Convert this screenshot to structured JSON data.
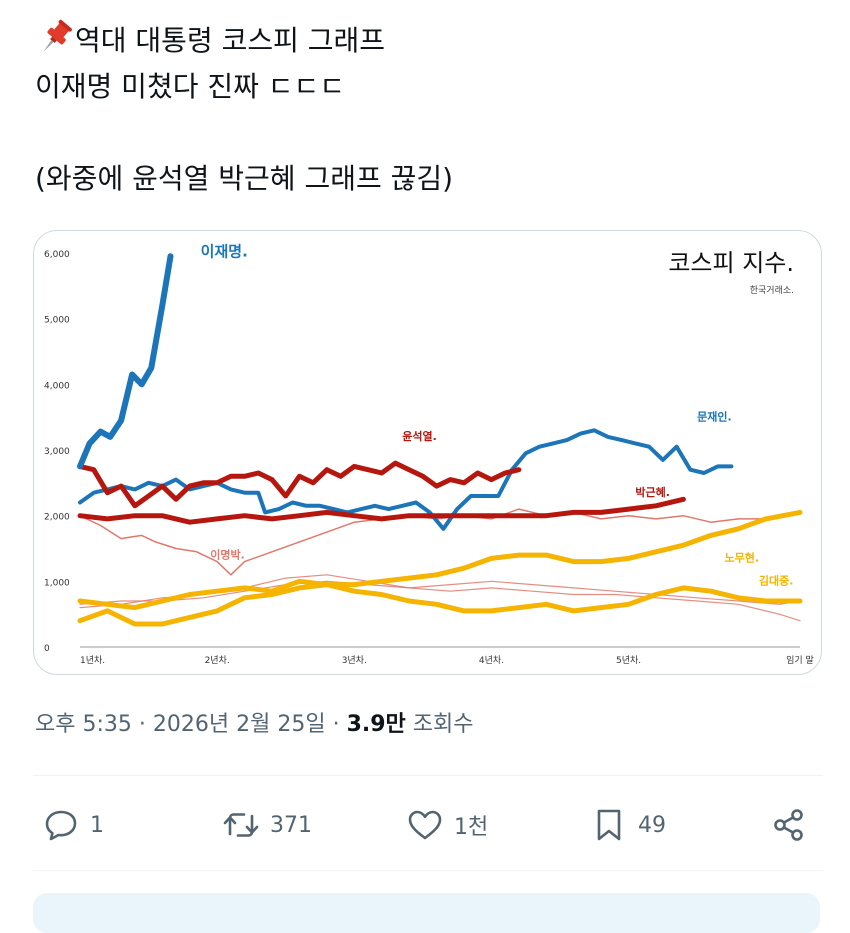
{
  "tweet": {
    "line1": "역대 대통령 코스피 그래프",
    "line2": "이재명 미쳤다 진짜 ㄷㄷㄷ",
    "line3": "(와중에 윤석열 박근혜 그래프 끊김)",
    "pin_icon": "pushpin-icon"
  },
  "meta": {
    "time": "오후 5:35",
    "sep1": "·",
    "date": "2026년 2월 25일",
    "sep2": "·",
    "views_count": "3.9만",
    "views_label": "조회수"
  },
  "actions": {
    "reply": {
      "icon": "reply-icon",
      "count": "1"
    },
    "retweet": {
      "icon": "retweet-icon",
      "count": "371"
    },
    "like": {
      "icon": "heart-icon",
      "count": "1천"
    },
    "bookmark": {
      "icon": "bookmark-icon",
      "count": "49"
    },
    "share": {
      "icon": "share-icon"
    }
  },
  "colors": {
    "blue": "#1b75b8",
    "red": "#b5170f",
    "lightred": "#e0796c",
    "yellow": "#f5b400",
    "text_secondary": "#536471"
  },
  "chart_data": {
    "type": "line",
    "title": "코스피 지수.",
    "source": "한국거래소.",
    "ylim": [
      0,
      6000
    ],
    "xlim": [
      0,
      5.25
    ],
    "yticks": [
      0,
      1000,
      2000,
      3000,
      4000,
      5000,
      6000
    ],
    "ytick_labels": [
      "0",
      "1,000",
      "2,000",
      "3,000",
      "4,000",
      "5,000",
      "6,000"
    ],
    "xticks": [
      0,
      1,
      2,
      3,
      4,
      5.25
    ],
    "xtick_labels": [
      "1년차.",
      "2년차.",
      "3년차.",
      "4년차.",
      "5년차.",
      "임기 말"
    ],
    "series": [
      {
        "name": "이재명.",
        "color": "#1b75b8",
        "width": 6,
        "label_x": 0.88,
        "label_y": 5950,
        "label_size": 15,
        "values": [
          [
            0,
            2750
          ],
          [
            0.07,
            3100
          ],
          [
            0.15,
            3280
          ],
          [
            0.22,
            3200
          ],
          [
            0.3,
            3450
          ],
          [
            0.38,
            4150
          ],
          [
            0.45,
            4000
          ],
          [
            0.52,
            4250
          ],
          [
            0.6,
            5200
          ],
          [
            0.66,
            5950
          ]
        ]
      },
      {
        "name": "윤석열.",
        "color": "#b5170f",
        "width": 5,
        "label_x": 2.35,
        "label_y": 3150,
        "label_size": 11,
        "values": [
          [
            0,
            2750
          ],
          [
            0.1,
            2700
          ],
          [
            0.2,
            2350
          ],
          [
            0.3,
            2450
          ],
          [
            0.4,
            2150
          ],
          [
            0.5,
            2300
          ],
          [
            0.6,
            2450
          ],
          [
            0.7,
            2250
          ],
          [
            0.8,
            2450
          ],
          [
            0.9,
            2500
          ],
          [
            1,
            2500
          ],
          [
            1.1,
            2600
          ],
          [
            1.2,
            2600
          ],
          [
            1.3,
            2650
          ],
          [
            1.4,
            2550
          ],
          [
            1.5,
            2300
          ],
          [
            1.6,
            2600
          ],
          [
            1.7,
            2500
          ],
          [
            1.8,
            2700
          ],
          [
            1.9,
            2600
          ],
          [
            2,
            2750
          ],
          [
            2.1,
            2700
          ],
          [
            2.2,
            2650
          ],
          [
            2.3,
            2800
          ],
          [
            2.4,
            2700
          ],
          [
            2.5,
            2600
          ],
          [
            2.6,
            2450
          ],
          [
            2.7,
            2550
          ],
          [
            2.8,
            2500
          ],
          [
            2.9,
            2650
          ],
          [
            3,
            2550
          ],
          [
            3.1,
            2650
          ],
          [
            3.2,
            2700
          ]
        ]
      },
      {
        "name": "문재인.",
        "color": "#1b75b8",
        "width": 4,
        "label_x": 4.5,
        "label_y": 3450,
        "label_size": 11,
        "values": [
          [
            0,
            2200
          ],
          [
            0.1,
            2350
          ],
          [
            0.2,
            2400
          ],
          [
            0.3,
            2450
          ],
          [
            0.4,
            2400
          ],
          [
            0.5,
            2500
          ],
          [
            0.6,
            2450
          ],
          [
            0.7,
            2550
          ],
          [
            0.8,
            2400
          ],
          [
            0.9,
            2450
          ],
          [
            1,
            2500
          ],
          [
            1.1,
            2400
          ],
          [
            1.2,
            2350
          ],
          [
            1.3,
            2350
          ],
          [
            1.35,
            2050
          ],
          [
            1.45,
            2100
          ],
          [
            1.55,
            2200
          ],
          [
            1.65,
            2150
          ],
          [
            1.75,
            2150
          ],
          [
            1.85,
            2100
          ],
          [
            1.95,
            2050
          ],
          [
            2.05,
            2100
          ],
          [
            2.15,
            2150
          ],
          [
            2.25,
            2100
          ],
          [
            2.35,
            2150
          ],
          [
            2.45,
            2200
          ],
          [
            2.55,
            2050
          ],
          [
            2.65,
            1800
          ],
          [
            2.75,
            2100
          ],
          [
            2.85,
            2300
          ],
          [
            2.95,
            2300
          ],
          [
            3.05,
            2300
          ],
          [
            3.15,
            2700
          ],
          [
            3.25,
            2950
          ],
          [
            3.35,
            3050
          ],
          [
            3.45,
            3100
          ],
          [
            3.55,
            3150
          ],
          [
            3.65,
            3250
          ],
          [
            3.75,
            3300
          ],
          [
            3.85,
            3200
          ],
          [
            3.95,
            3150
          ],
          [
            4.05,
            3100
          ],
          [
            4.15,
            3050
          ],
          [
            4.25,
            2850
          ],
          [
            4.35,
            3050
          ],
          [
            4.45,
            2700
          ],
          [
            4.55,
            2650
          ],
          [
            4.65,
            2750
          ],
          [
            4.75,
            2750
          ]
        ]
      },
      {
        "name": "박근혜.",
        "color": "#b5170f",
        "width": 5,
        "label_x": 4.05,
        "label_y": 2300,
        "label_size": 11,
        "values": [
          [
            0,
            2000
          ],
          [
            0.2,
            1950
          ],
          [
            0.4,
            2000
          ],
          [
            0.6,
            2000
          ],
          [
            0.8,
            1900
          ],
          [
            1,
            1950
          ],
          [
            1.2,
            2000
          ],
          [
            1.4,
            1950
          ],
          [
            1.6,
            2000
          ],
          [
            1.8,
            2050
          ],
          [
            2,
            2000
          ],
          [
            2.2,
            1950
          ],
          [
            2.4,
            2000
          ],
          [
            2.6,
            2000
          ],
          [
            2.8,
            2000
          ],
          [
            3,
            2000
          ],
          [
            3.2,
            2000
          ],
          [
            3.4,
            2000
          ],
          [
            3.6,
            2050
          ],
          [
            3.8,
            2050
          ],
          [
            4,
            2100
          ],
          [
            4.2,
            2150
          ],
          [
            4.4,
            2250
          ]
        ]
      },
      {
        "name": "노무현.",
        "color": "#f5b400",
        "width": 5,
        "label_x": 4.7,
        "label_y": 1300,
        "label_size": 11,
        "values": [
          [
            0,
            400
          ],
          [
            0.2,
            550
          ],
          [
            0.4,
            350
          ],
          [
            0.6,
            350
          ],
          [
            0.8,
            450
          ],
          [
            1,
            550
          ],
          [
            1.2,
            750
          ],
          [
            1.4,
            800
          ],
          [
            1.6,
            900
          ],
          [
            1.8,
            950
          ],
          [
            2,
            950
          ],
          [
            2.2,
            1000
          ],
          [
            2.4,
            1050
          ],
          [
            2.6,
            1100
          ],
          [
            2.8,
            1200
          ],
          [
            3,
            1350
          ],
          [
            3.2,
            1400
          ],
          [
            3.4,
            1400
          ],
          [
            3.6,
            1300
          ],
          [
            3.8,
            1300
          ],
          [
            4,
            1350
          ],
          [
            4.2,
            1450
          ],
          [
            4.4,
            1550
          ],
          [
            4.6,
            1700
          ],
          [
            4.8,
            1800
          ],
          [
            5,
            1950
          ],
          [
            5.25,
            2050
          ]
        ]
      },
      {
        "name": "김대중.",
        "color": "#f5b400",
        "width": 5,
        "label_x": 4.95,
        "label_y": 950,
        "label_size": 11,
        "values": [
          [
            0,
            700
          ],
          [
            0.2,
            650
          ],
          [
            0.4,
            600
          ],
          [
            0.6,
            700
          ],
          [
            0.8,
            800
          ],
          [
            1,
            850
          ],
          [
            1.2,
            900
          ],
          [
            1.4,
            850
          ],
          [
            1.6,
            1000
          ],
          [
            1.8,
            950
          ],
          [
            2,
            850
          ],
          [
            2.2,
            800
          ],
          [
            2.4,
            700
          ],
          [
            2.6,
            650
          ],
          [
            2.8,
            550
          ],
          [
            3,
            550
          ],
          [
            3.2,
            600
          ],
          [
            3.4,
            650
          ],
          [
            3.6,
            550
          ],
          [
            3.8,
            600
          ],
          [
            4,
            650
          ],
          [
            4.2,
            800
          ],
          [
            4.4,
            900
          ],
          [
            4.6,
            850
          ],
          [
            4.8,
            750
          ],
          [
            5,
            700
          ],
          [
            5.25,
            700
          ]
        ]
      },
      {
        "name": "이명박.",
        "color": "#e0796c",
        "width": 1.5,
        "label_x": 0.95,
        "label_y": 1350,
        "label_size": 11,
        "values": [
          [
            0,
            2000
          ],
          [
            0.15,
            1850
          ],
          [
            0.3,
            1650
          ],
          [
            0.45,
            1700
          ],
          [
            0.55,
            1600
          ],
          [
            0.7,
            1500
          ],
          [
            0.85,
            1450
          ],
          [
            1,
            1300
          ],
          [
            1.1,
            1100
          ],
          [
            1.2,
            1300
          ],
          [
            1.4,
            1450
          ],
          [
            1.6,
            1600
          ],
          [
            1.8,
            1750
          ],
          [
            2,
            1900
          ],
          [
            2.2,
            1950
          ],
          [
            2.4,
            2000
          ],
          [
            2.6,
            1950
          ],
          [
            2.8,
            2000
          ],
          [
            3,
            1950
          ],
          [
            3.2,
            2100
          ],
          [
            3.4,
            2000
          ],
          [
            3.6,
            2050
          ],
          [
            3.8,
            1950
          ],
          [
            4,
            2000
          ],
          [
            4.2,
            1950
          ],
          [
            4.4,
            2000
          ],
          [
            4.6,
            1900
          ],
          [
            4.8,
            1950
          ],
          [
            5,
            1950
          ]
        ]
      }
    ],
    "background_series": [
      {
        "color": "#e0796c",
        "width": 1.2,
        "values": [
          [
            0,
            650
          ],
          [
            0.3,
            700
          ],
          [
            0.6,
            700
          ],
          [
            0.9,
            750
          ],
          [
            1.2,
            850
          ],
          [
            1.5,
            950
          ],
          [
            1.8,
            1000
          ],
          [
            2.1,
            950
          ],
          [
            2.4,
            900
          ],
          [
            2.7,
            850
          ],
          [
            3,
            900
          ],
          [
            3.3,
            850
          ],
          [
            3.6,
            800
          ],
          [
            3.9,
            800
          ],
          [
            4.2,
            750
          ],
          [
            4.5,
            700
          ],
          [
            4.8,
            650
          ],
          [
            5.1,
            500
          ],
          [
            5.25,
            400
          ]
        ]
      },
      {
        "color": "#e0796c",
        "width": 1.2,
        "values": [
          [
            0,
            600
          ],
          [
            0.3,
            650
          ],
          [
            0.6,
            750
          ],
          [
            0.9,
            800
          ],
          [
            1.2,
            900
          ],
          [
            1.5,
            1050
          ],
          [
            1.8,
            1100
          ],
          [
            2.1,
            1000
          ],
          [
            2.4,
            900
          ],
          [
            2.7,
            950
          ],
          [
            3,
            1000
          ],
          [
            3.3,
            950
          ],
          [
            3.6,
            900
          ],
          [
            3.9,
            850
          ],
          [
            4.2,
            800
          ],
          [
            4.5,
            750
          ],
          [
            4.8,
            700
          ],
          [
            5.1,
            650
          ],
          [
            5.25,
            700
          ]
        ]
      }
    ]
  }
}
